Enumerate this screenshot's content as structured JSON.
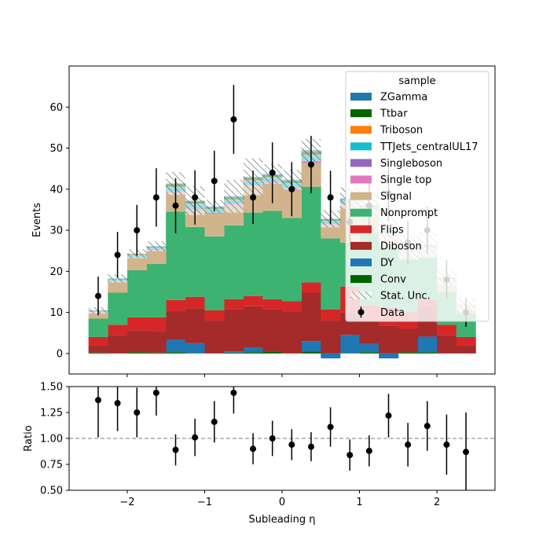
{
  "chart_data": [
    {
      "type": "bar",
      "stacked": true,
      "panel": "main",
      "ylabel": "Events",
      "xlim": [
        -2.75,
        2.75
      ],
      "ylim": [
        -5,
        70
      ],
      "yticks": [
        0,
        10,
        20,
        30,
        40,
        50,
        60
      ],
      "bin_centers": [
        -2.375,
        -2.125,
        -1.875,
        -1.625,
        -1.375,
        -1.125,
        -0.875,
        -0.625,
        -0.375,
        -0.125,
        0.125,
        0.375,
        0.625,
        0.875,
        1.125,
        1.375,
        1.625,
        1.875,
        2.125,
        2.375
      ],
      "bin_width": 0.25,
      "series": [
        {
          "name": "Conv",
          "color": "#006400",
          "values": [
            0.2,
            0.0,
            0.3,
            0.2,
            0.3,
            0.0,
            0.0,
            0.2,
            0.3,
            0.5,
            0.0,
            0.5,
            0.0,
            0.0,
            0.3,
            0.0,
            0.3,
            0.3,
            0.0,
            0.0
          ]
        },
        {
          "name": "DY",
          "color": "#1f77b4",
          "values": [
            0.0,
            0.0,
            0.0,
            0.0,
            3.0,
            2.5,
            0.0,
            0.3,
            1.2,
            0.0,
            0.0,
            2.5,
            -1.2,
            4.5,
            2.0,
            -1.2,
            0.0,
            3.8,
            0.0,
            0.0
          ]
        },
        {
          "name": "Diboson",
          "color": "#a52a2a",
          "values": [
            1.8,
            4.5,
            5.3,
            5.3,
            7.0,
            8.5,
            8.0,
            10.2,
            10.0,
            10.2,
            10.2,
            11.8,
            8.0,
            5.5,
            5.5,
            6.8,
            5.7,
            7.7,
            4.5,
            2.0
          ]
        },
        {
          "name": "Flips",
          "color": "#d62728",
          "values": [
            2.0,
            2.5,
            3.2,
            3.3,
            2.7,
            2.8,
            2.5,
            2.5,
            2.5,
            2.5,
            2.5,
            2.5,
            2.7,
            6.3,
            4.0,
            4.5,
            4.0,
            1.3,
            2.5,
            2.0
          ]
        },
        {
          "name": "Nonprompt",
          "color": "#3cb371",
          "values": [
            4.5,
            7.8,
            11.5,
            13.0,
            21.5,
            17.0,
            18.0,
            18.0,
            20.3,
            21.5,
            20.3,
            23.3,
            17.3,
            10.7,
            17.7,
            14.5,
            13.0,
            10.5,
            8.0,
            5.8
          ]
        },
        {
          "name": "Signal",
          "color": "#d2b48c",
          "values": [
            1.5,
            2.7,
            3.1,
            3.3,
            4.7,
            4.2,
            5.5,
            5.0,
            6.5,
            6.8,
            7.0,
            5.8,
            3.3,
            9.3,
            5.0,
            2.8,
            1.8,
            2.0,
            2.8,
            1.6
          ]
        },
        {
          "name": "Single top",
          "color": "#e377c2",
          "values": [
            0.1,
            0.1,
            0.1,
            0.1,
            0.3,
            0.2,
            0.2,
            0.2,
            0.2,
            0.2,
            0.2,
            0.3,
            0.2,
            0.2,
            0.2,
            0.2,
            0.1,
            0.1,
            0.1,
            0.1
          ]
        },
        {
          "name": "Singleboson",
          "color": "#9467bd",
          "values": [
            0.0,
            0.0,
            0.0,
            0.0,
            0.1,
            0.1,
            0.1,
            0.1,
            0.1,
            0.1,
            0.1,
            0.1,
            0.1,
            0.1,
            0.1,
            0.1,
            0.0,
            0.0,
            0.0,
            0.0
          ]
        },
        {
          "name": "TTJets_centralUL17",
          "color": "#17becf",
          "values": [
            0.2,
            0.4,
            0.4,
            0.5,
            0.8,
            1.0,
            0.8,
            0.8,
            0.9,
            0.9,
            1.0,
            1.3,
            0.6,
            0.6,
            0.7,
            0.5,
            0.4,
            0.3,
            0.3,
            0.2
          ]
        },
        {
          "name": "Triboson",
          "color": "#ff7f0e",
          "values": [
            0.0,
            0.0,
            0.1,
            0.1,
            0.2,
            0.2,
            0.1,
            0.2,
            0.2,
            0.2,
            0.2,
            0.3,
            0.1,
            0.1,
            0.1,
            0.1,
            0.1,
            0.1,
            0.0,
            0.0
          ]
        },
        {
          "name": "Ttbar",
          "color": "#006400",
          "values": [
            0.1,
            0.2,
            0.2,
            0.2,
            0.6,
            0.5,
            0.4,
            0.5,
            0.5,
            0.5,
            0.5,
            0.7,
            0.3,
            0.3,
            0.3,
            0.3,
            0.2,
            0.2,
            0.2,
            0.1
          ]
        },
        {
          "name": "ZGamma",
          "color": "#1f77b4",
          "values": [
            0.1,
            0.1,
            0.1,
            0.1,
            0.2,
            0.2,
            0.2,
            0.3,
            0.3,
            0.3,
            0.3,
            0.4,
            0.2,
            0.2,
            0.2,
            0.2,
            0.1,
            0.1,
            0.1,
            0.1
          ]
        }
      ],
      "stat_unc": {
        "name": "Stat. Unc.",
        "values": [
          0.8,
          1.0,
          1.1,
          1.2,
          2.8,
          3.5,
          1.6,
          4.0,
          4.5,
          2.4,
          2.4,
          2.7,
          2.1,
          2.6,
          3.2,
          3.1,
          2.9,
          3.1,
          2.0,
          1.6
        ]
      },
      "data": {
        "name": "Data",
        "values": [
          14,
          24,
          30,
          38,
          36,
          38,
          42,
          57,
          38,
          44,
          40,
          46,
          38,
          32,
          36,
          39,
          27,
          30,
          18,
          10
        ],
        "errors": [
          4.7,
          5.6,
          6.2,
          7.1,
          6.7,
          6.6,
          7.4,
          8.4,
          6.5,
          7.4,
          6.6,
          7.0,
          6.5,
          5.7,
          6.1,
          6.6,
          5.4,
          5.8,
          4.7,
          3.5
        ]
      },
      "legend": {
        "title": "sample",
        "position": "top-right",
        "entries": [
          "ZGamma",
          "Ttbar",
          "Triboson",
          "TTJets_centralUL17",
          "Singleboson",
          "Single top",
          "Signal",
          "Nonprompt",
          "Flips",
          "Diboson",
          "DY",
          "Conv",
          "Stat. Unc.",
          "Data"
        ]
      }
    },
    {
      "type": "scatter",
      "panel": "ratio",
      "xlabel": "Subleading η",
      "ylabel": "Ratio",
      "xlim": [
        -2.75,
        2.75
      ],
      "ylim": [
        0.5,
        1.5
      ],
      "xticks": [
        -2,
        -1,
        0,
        1,
        2
      ],
      "xtick_labels": [
        "−2",
        "−1",
        "0",
        "1",
        "2"
      ],
      "yticks": [
        0.5,
        0.75,
        1.0,
        1.25,
        1.5
      ],
      "ytick_labels": [
        "0.50",
        "0.75",
        "1.00",
        "1.25",
        "1.50"
      ],
      "reference_line": 1.0,
      "x": [
        -2.375,
        -2.125,
        -1.875,
        -1.625,
        -1.375,
        -1.125,
        -0.875,
        -0.625,
        -0.375,
        -0.125,
        0.125,
        0.375,
        0.625,
        0.875,
        1.125,
        1.375,
        1.625,
        1.875,
        2.125,
        2.375
      ],
      "values": [
        1.37,
        1.34,
        1.25,
        1.44,
        0.89,
        1.01,
        1.16,
        1.44,
        0.9,
        1.0,
        0.94,
        0.92,
        1.11,
        0.84,
        0.88,
        1.22,
        0.94,
        1.12,
        0.94,
        0.87
      ],
      "errors": [
        0.36,
        0.27,
        0.24,
        0.22,
        0.15,
        0.18,
        0.2,
        0.2,
        0.15,
        0.17,
        0.15,
        0.14,
        0.19,
        0.15,
        0.15,
        0.21,
        0.21,
        0.24,
        0.29,
        0.38
      ]
    }
  ]
}
